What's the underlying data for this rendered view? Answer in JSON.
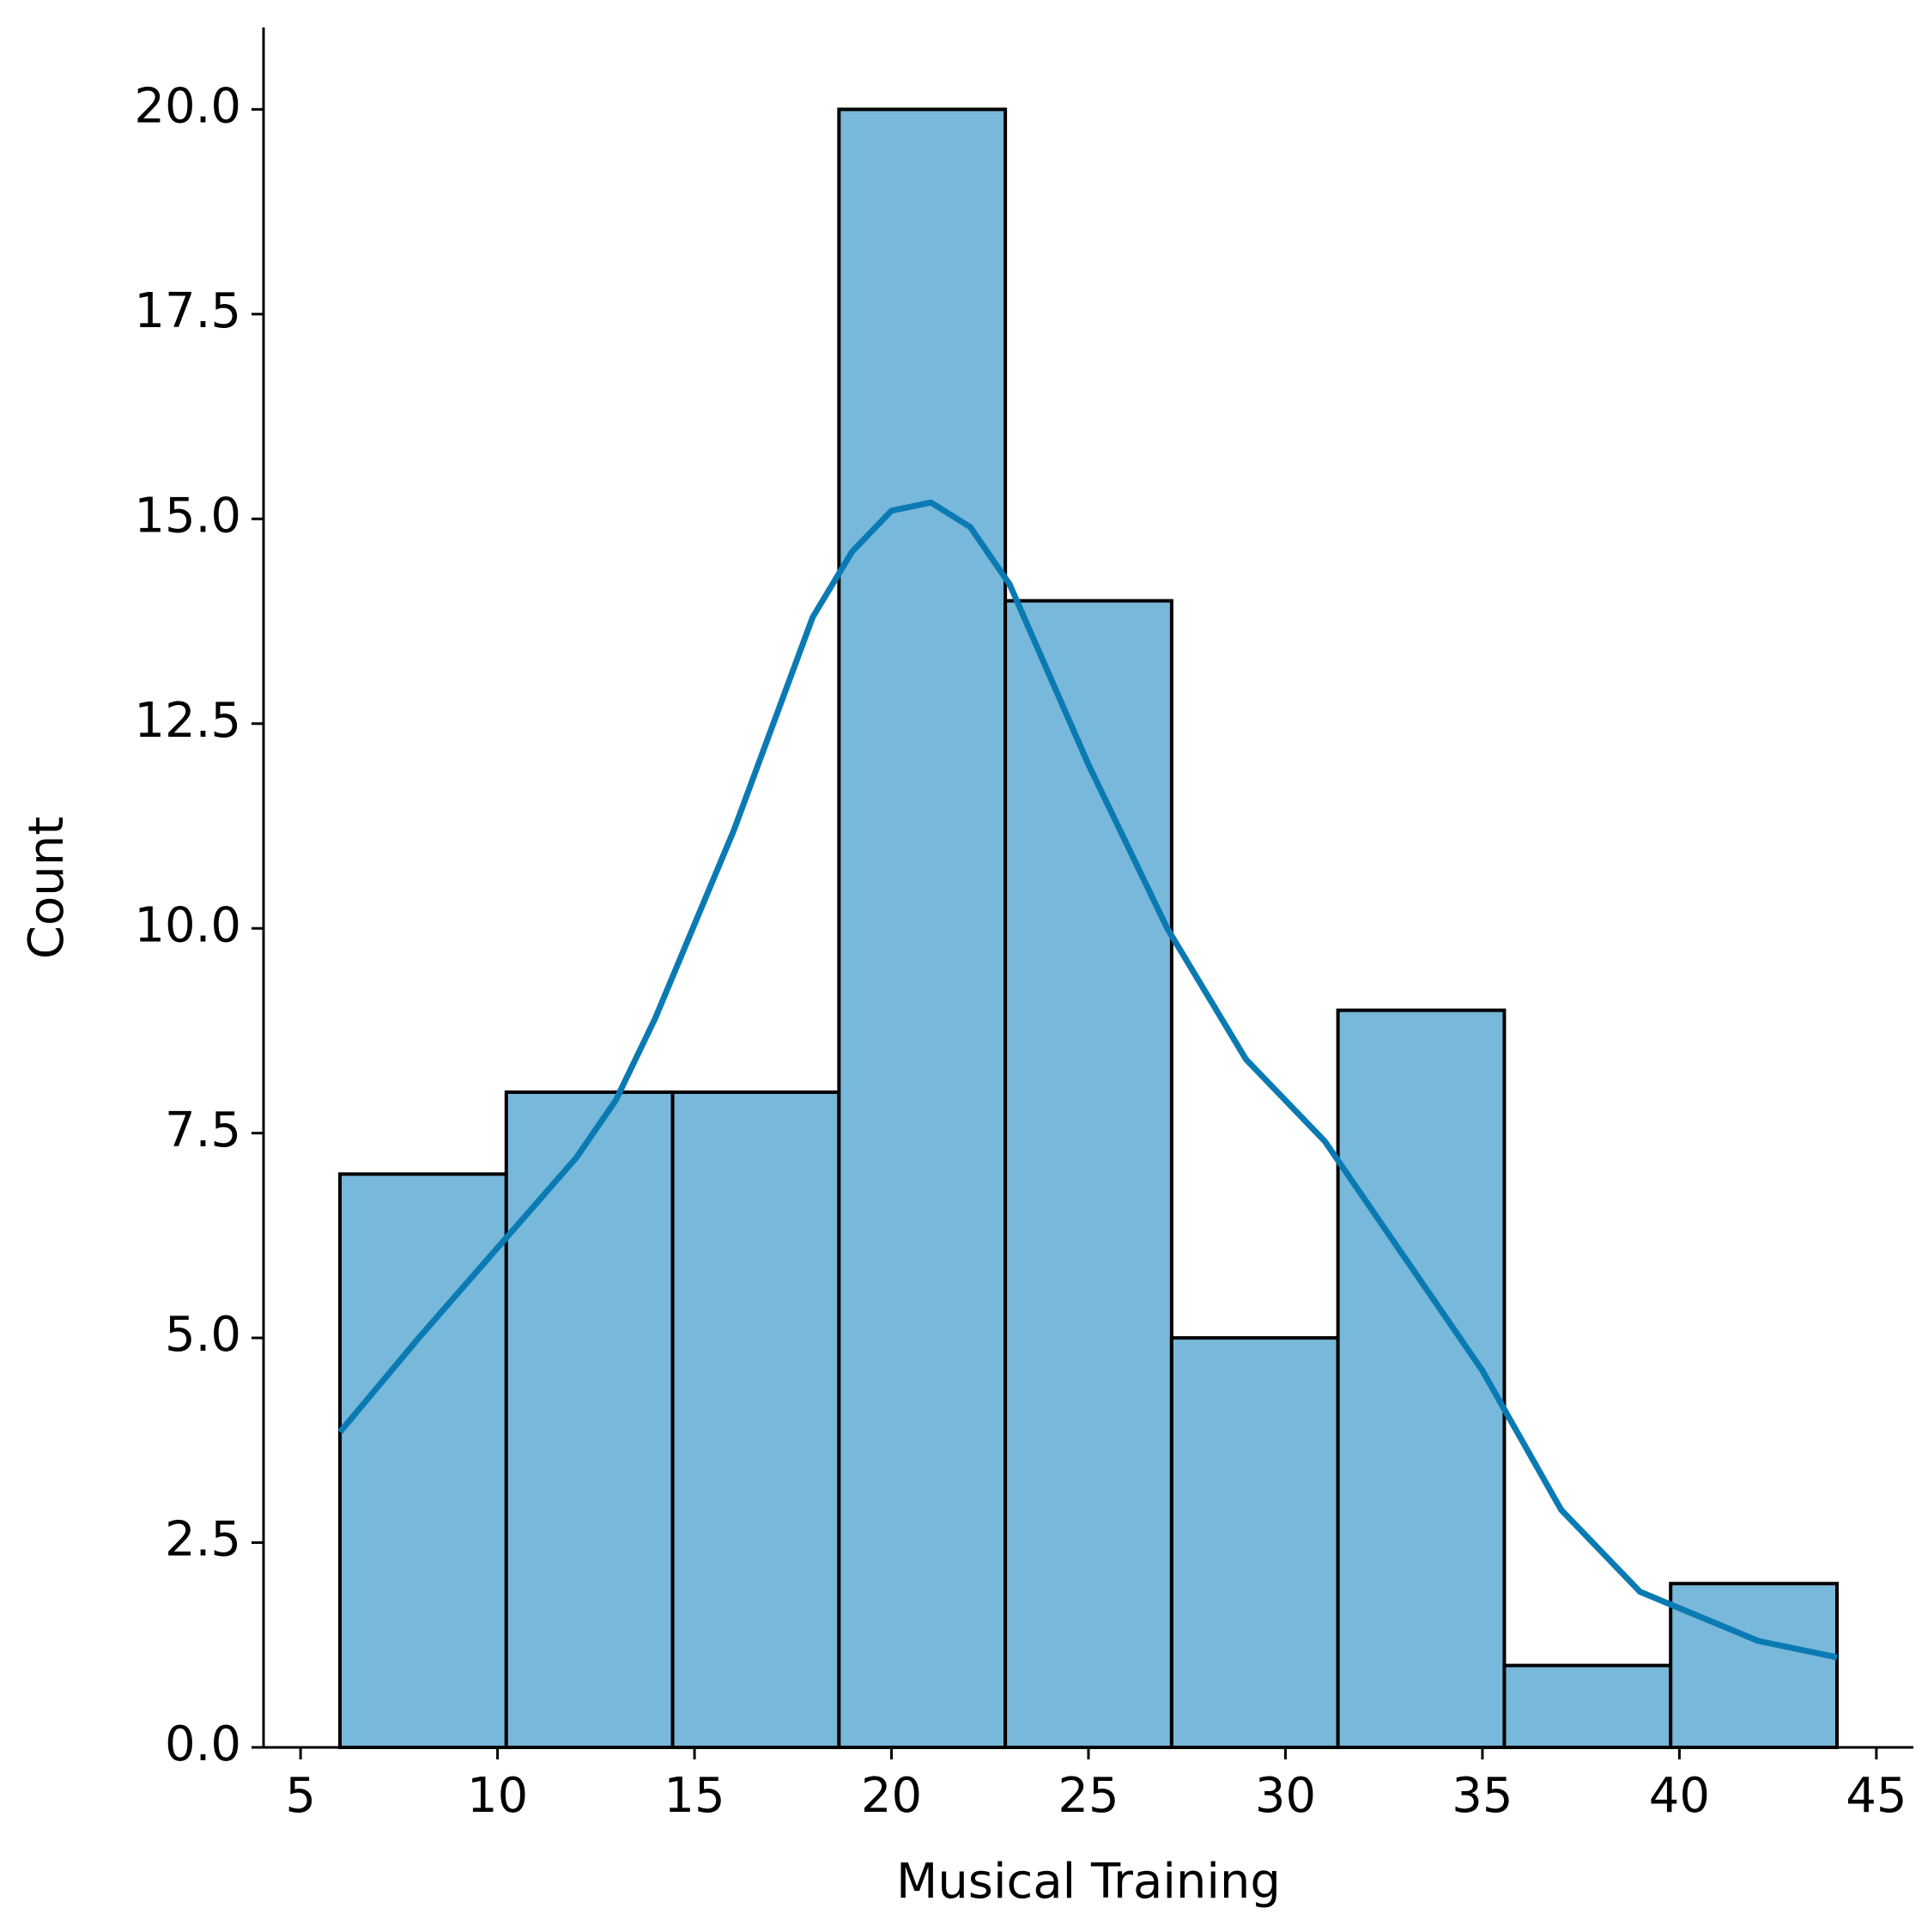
{
  "chart_data": {
    "type": "histogram",
    "xlabel": "Musical Training",
    "ylabel": "Count",
    "bins": [
      6,
      10.222,
      14.444,
      18.667,
      22.889,
      27.111,
      31.333,
      35.556,
      39.778,
      44
    ],
    "values": [
      7,
      8,
      8,
      20,
      14,
      5,
      9,
      1,
      2
    ],
    "color": "#78b8da",
    "kde": {
      "color": "#0a7ab3",
      "x": [
        6,
        8,
        10,
        12,
        13,
        14,
        16,
        18,
        19,
        20,
        21,
        22,
        23,
        25,
        27,
        29,
        31,
        33,
        35,
        37,
        39,
        40,
        42,
        44
      ],
      "y": [
        3.85,
        5.0,
        6.1,
        7.2,
        7.9,
        8.9,
        11.2,
        13.8,
        14.6,
        15.1,
        15.2,
        14.9,
        14.2,
        12.0,
        10.0,
        8.4,
        7.4,
        6.0,
        4.6,
        2.9,
        1.9,
        1.7,
        1.3,
        1.1
      ]
    },
    "xlim": [
      4.06,
      45.94
    ],
    "ylim": [
      0,
      21
    ],
    "xticks": [
      5,
      10,
      15,
      20,
      25,
      30,
      35,
      40,
      45
    ],
    "yticks": [
      {
        "value": 0,
        "label": "0.0"
      },
      2.5,
      {
        "value": 5,
        "label": "5.0"
      },
      7.5,
      {
        "value": 10,
        "label": "10.0"
      },
      12.5,
      {
        "value": 15,
        "label": "15.0"
      },
      17.5,
      {
        "value": 20,
        "label": "20.0"
      }
    ]
  }
}
